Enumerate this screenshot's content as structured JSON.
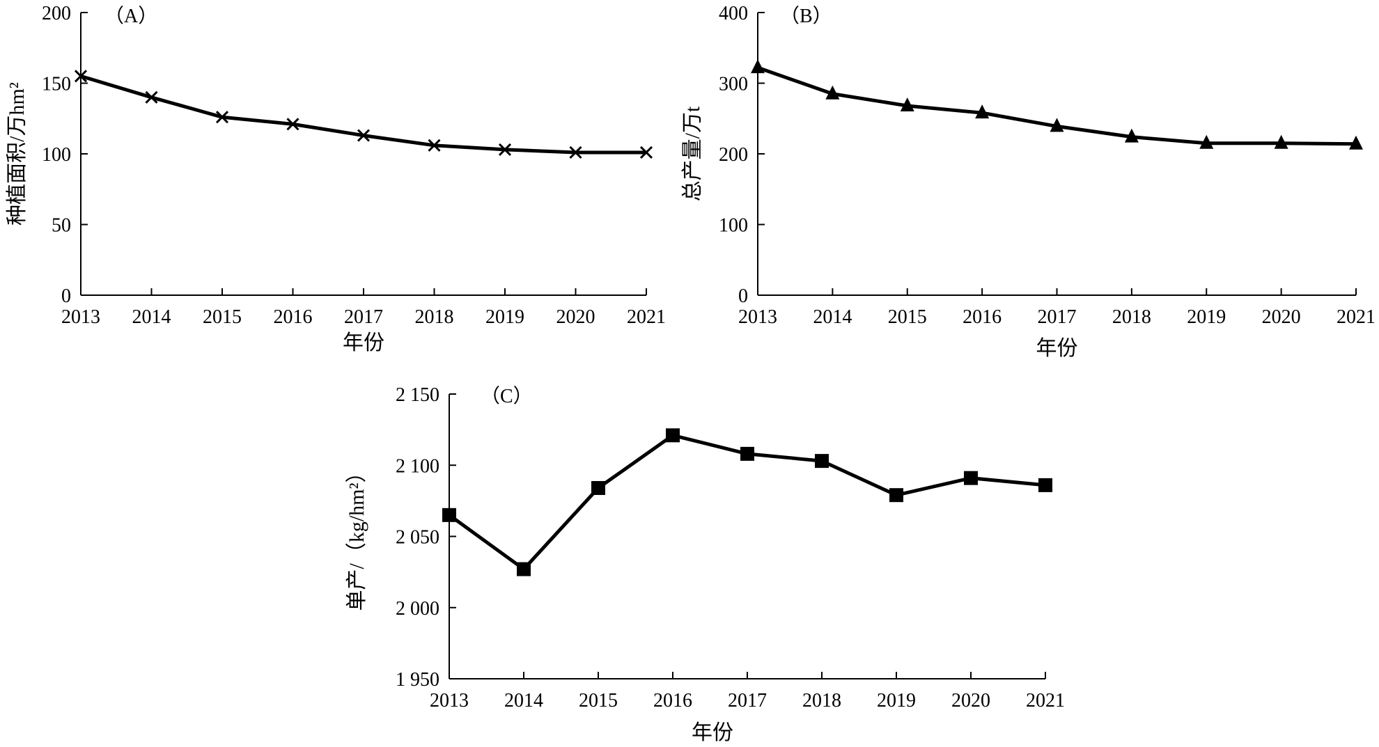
{
  "chart_data": [
    {
      "id": "A",
      "type": "line",
      "panel_label": "（A）",
      "title": "",
      "xlabel": "年份",
      "ylabel": "种植面积/万hm²",
      "x": [
        2013,
        2014,
        2015,
        2016,
        2017,
        2018,
        2019,
        2020,
        2021
      ],
      "x_tick_labels": [
        "2013",
        "2014",
        "2015",
        "2016",
        "2017",
        "2018",
        "2019",
        "2020",
        "2021"
      ],
      "y_tick_values": [
        0,
        50,
        100,
        150,
        200
      ],
      "y_tick_labels": [
        "0",
        "50",
        "100",
        "150",
        "200"
      ],
      "ylim": [
        0,
        200
      ],
      "marker": "x",
      "series": [
        {
          "name": "种植面积",
          "values": [
            155,
            140,
            126,
            121,
            113,
            106,
            103,
            101,
            101
          ]
        }
      ],
      "grid": false
    },
    {
      "id": "B",
      "type": "line",
      "panel_label": "（B）",
      "title": "",
      "xlabel": "年份",
      "ylabel": "总产量/万t",
      "x": [
        2013,
        2014,
        2015,
        2016,
        2017,
        2018,
        2019,
        2020,
        2021
      ],
      "x_tick_labels": [
        "2013",
        "2014",
        "2015",
        "2016",
        "2017",
        "2018",
        "2019",
        "2020",
        "2021"
      ],
      "y_tick_values": [
        0,
        100,
        200,
        300,
        400
      ],
      "y_tick_labels": [
        "0",
        "100",
        "200",
        "300",
        "400"
      ],
      "ylim": [
        0,
        400
      ],
      "marker": "triangle",
      "series": [
        {
          "name": "总产量",
          "values": [
            322,
            285,
            268,
            258,
            239,
            224,
            215,
            215,
            214
          ]
        }
      ],
      "grid": false
    },
    {
      "id": "C",
      "type": "line",
      "panel_label": "（C）",
      "title": "",
      "xlabel": "年份",
      "ylabel": "单产/（kg/hm²）",
      "x": [
        2013,
        2014,
        2015,
        2016,
        2017,
        2018,
        2019,
        2020,
        2021
      ],
      "x_tick_labels": [
        "2013",
        "2014",
        "2015",
        "2016",
        "2017",
        "2018",
        "2019",
        "2020",
        "2021"
      ],
      "y_tick_values": [
        1950,
        2000,
        2050,
        2100,
        2150
      ],
      "y_tick_labels": [
        "1 950",
        "2 000",
        "2 050",
        "2 100",
        "2 150"
      ],
      "ylim": [
        1950,
        2150
      ],
      "marker": "square",
      "series": [
        {
          "name": "单产",
          "values": [
            2065,
            2027,
            2084,
            2121,
            2108,
            2103,
            2079,
            2091,
            2086
          ]
        }
      ],
      "grid": false
    }
  ]
}
